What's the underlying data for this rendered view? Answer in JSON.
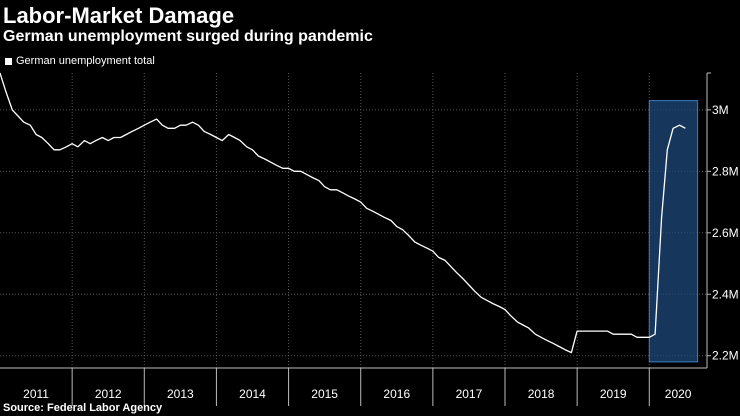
{
  "header": {
    "title": "Labor-Market Damage",
    "subtitle": "German unemployment surged during pandemic"
  },
  "legend": {
    "label": "German unemployment total"
  },
  "footer": {
    "source": "Source: Federal Labor Agency"
  },
  "chart_data": {
    "type": "line",
    "title": "Labor-Market Damage",
    "subtitle": "German unemployment surged during pandemic",
    "xlabel": "",
    "ylabel": "",
    "ylim": [
      2.16,
      3.12
    ],
    "y_ticks": [
      2.2,
      2.4,
      2.6,
      2.8,
      3.0
    ],
    "y_tick_labels": [
      "2.2M",
      "2.4M",
      "2.6M",
      "2.8M",
      "3M"
    ],
    "x_start": 2011.0,
    "x_end": 2020.8,
    "x_tick_labels": [
      "2011",
      "2012",
      "2013",
      "2014",
      "2015",
      "2016",
      "2017",
      "2018",
      "2019",
      "2020"
    ],
    "highlight_range": [
      2020.0,
      2020.67
    ],
    "highlight_y_range": [
      2.18,
      3.03
    ],
    "series": [
      {
        "name": "German unemployment total",
        "color": "#ffffff",
        "unit": "millions",
        "x": [
          2011.0,
          2011.08,
          2011.17,
          2011.25,
          2011.33,
          2011.42,
          2011.5,
          2011.58,
          2011.67,
          2011.75,
          2011.83,
          2011.92,
          2012.0,
          2012.08,
          2012.17,
          2012.25,
          2012.33,
          2012.42,
          2012.5,
          2012.58,
          2012.67,
          2012.75,
          2012.83,
          2012.92,
          2013.0,
          2013.08,
          2013.17,
          2013.25,
          2013.33,
          2013.42,
          2013.5,
          2013.58,
          2013.67,
          2013.75,
          2013.83,
          2013.92,
          2014.0,
          2014.08,
          2014.17,
          2014.25,
          2014.33,
          2014.42,
          2014.5,
          2014.58,
          2014.67,
          2014.75,
          2014.83,
          2014.92,
          2015.0,
          2015.08,
          2015.17,
          2015.25,
          2015.33,
          2015.42,
          2015.5,
          2015.58,
          2015.67,
          2015.75,
          2015.83,
          2015.92,
          2016.0,
          2016.08,
          2016.17,
          2016.25,
          2016.33,
          2016.42,
          2016.5,
          2016.58,
          2016.67,
          2016.75,
          2016.83,
          2016.92,
          2017.0,
          2017.08,
          2017.17,
          2017.25,
          2017.33,
          2017.42,
          2017.5,
          2017.58,
          2017.67,
          2017.75,
          2017.83,
          2017.92,
          2018.0,
          2018.08,
          2018.17,
          2018.25,
          2018.33,
          2018.42,
          2018.5,
          2018.58,
          2018.67,
          2018.75,
          2018.83,
          2018.92,
          2019.0,
          2019.08,
          2019.17,
          2019.25,
          2019.33,
          2019.42,
          2019.5,
          2019.58,
          2019.67,
          2019.75,
          2019.83,
          2019.92,
          2020.0,
          2020.08,
          2020.17,
          2020.25,
          2020.33,
          2020.42,
          2020.5
        ],
        "values": [
          3.12,
          3.06,
          3.0,
          2.98,
          2.96,
          2.95,
          2.92,
          2.91,
          2.89,
          2.87,
          2.87,
          2.88,
          2.89,
          2.88,
          2.9,
          2.89,
          2.9,
          2.91,
          2.9,
          2.91,
          2.91,
          2.92,
          2.93,
          2.94,
          2.95,
          2.96,
          2.97,
          2.95,
          2.94,
          2.94,
          2.95,
          2.95,
          2.96,
          2.95,
          2.93,
          2.92,
          2.91,
          2.9,
          2.92,
          2.91,
          2.9,
          2.88,
          2.87,
          2.85,
          2.84,
          2.83,
          2.82,
          2.81,
          2.81,
          2.8,
          2.8,
          2.79,
          2.78,
          2.77,
          2.75,
          2.74,
          2.74,
          2.73,
          2.72,
          2.71,
          2.7,
          2.68,
          2.67,
          2.66,
          2.65,
          2.64,
          2.62,
          2.61,
          2.59,
          2.57,
          2.56,
          2.55,
          2.54,
          2.52,
          2.51,
          2.49,
          2.47,
          2.45,
          2.43,
          2.41,
          2.39,
          2.38,
          2.37,
          2.36,
          2.35,
          2.33,
          2.31,
          2.3,
          2.29,
          2.27,
          2.26,
          2.25,
          2.24,
          2.23,
          2.22,
          2.21,
          2.28,
          2.28,
          2.28,
          2.28,
          2.28,
          2.28,
          2.27,
          2.27,
          2.27,
          2.27,
          2.26,
          2.26,
          2.26,
          2.27,
          2.65,
          2.87,
          2.94,
          2.95,
          2.94
        ]
      }
    ]
  }
}
